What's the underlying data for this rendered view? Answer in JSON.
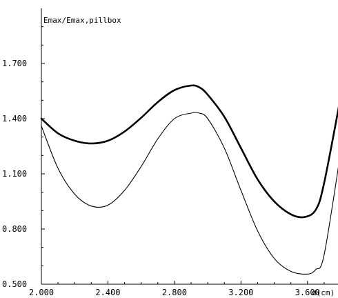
{
  "chart_data": {
    "type": "line",
    "ylabel": "Emax/Emax,pillbox",
    "xlabel": "d(cm)",
    "xlim": [
      2.0,
      3.8
    ],
    "ylim": [
      0.5,
      2.0
    ],
    "xticks": [
      2.0,
      2.4,
      2.8,
      3.2,
      3.6
    ],
    "xtick_labels": [
      "2.000",
      "2.400",
      "2.800",
      "3.200",
      "3.600"
    ],
    "yticks": [
      0.5,
      0.8,
      1.1,
      1.4,
      1.7
    ],
    "ytick_labels": [
      "0.500",
      "0.800",
      "1.100",
      "1.400",
      "1.700"
    ],
    "grid": false,
    "series": [
      {
        "style": "thick",
        "x": [
          2.0,
          2.1,
          2.2,
          2.3,
          2.4,
          2.5,
          2.6,
          2.7,
          2.8,
          2.9,
          2.95,
          3.0,
          3.1,
          3.2,
          3.3,
          3.4,
          3.5,
          3.58,
          3.65,
          3.7,
          3.8
        ],
        "y": [
          1.4,
          1.32,
          1.28,
          1.265,
          1.28,
          1.33,
          1.405,
          1.49,
          1.555,
          1.58,
          1.57,
          1.53,
          1.41,
          1.24,
          1.07,
          0.95,
          0.88,
          0.865,
          0.905,
          1.05,
          1.52
        ]
      },
      {
        "style": "thin",
        "x": [
          2.0,
          2.1,
          2.2,
          2.3,
          2.4,
          2.5,
          2.6,
          2.7,
          2.8,
          2.9,
          2.95,
          3.0,
          3.1,
          3.2,
          3.3,
          3.4,
          3.5,
          3.6,
          3.65,
          3.7,
          3.8
        ],
        "y": [
          1.36,
          1.13,
          0.99,
          0.925,
          0.93,
          1.01,
          1.14,
          1.29,
          1.4,
          1.43,
          1.43,
          1.4,
          1.24,
          1.01,
          0.79,
          0.64,
          0.57,
          0.555,
          0.58,
          0.66,
          1.22
        ]
      }
    ]
  }
}
